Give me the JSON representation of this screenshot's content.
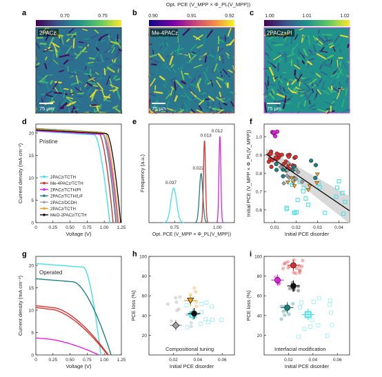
{
  "top": {
    "cbar_title": "Opt. PCE (V_MPP × Φ_PL(V_MPP))",
    "panels": [
      {
        "letter": "a",
        "map_label": "2PACz",
        "ticks": [
          "0.70",
          "0.75"
        ],
        "tick_pos": [
          0.34,
          0.78
        ],
        "scalebar": "75 μm",
        "frame": "#333333",
        "seed": 3
      },
      {
        "letter": "b",
        "map_label": "Me-4PACz",
        "ticks": [
          "0.90",
          "0.91",
          "0.92"
        ],
        "tick_pos": [
          0.0,
          0.5,
          1.0
        ],
        "scalebar": "75 μm",
        "frame": "#d8403a",
        "seed": 11
      },
      {
        "letter": "c",
        "map_label": "2PACz+PI",
        "ticks": [
          "1.00",
          "1.01",
          "1.02"
        ],
        "tick_pos": [
          0.0,
          0.5,
          1.0
        ],
        "scalebar": "75 μm",
        "frame": "#e040e0",
        "seed": 23
      }
    ]
  },
  "labels": {
    "d": "d",
    "e": "e",
    "f": "f",
    "g": "g",
    "h": "h",
    "i": "i"
  },
  "notes": {
    "pristine": "Pristine",
    "operated": "Operated",
    "comp": "Compositional tuning",
    "inter": "Interfacial modification"
  },
  "colors": {
    "2PACz/TCTH": "#3fe0e8",
    "Me-4PACz/TCTH": "#d8302e",
    "2PACz/TCTH/PI": "#e020e0",
    "2PACz/TCTH/LiF": "#1a8080",
    "2PACz/DCDH": "#a0a0a0",
    "2PACz/TCTH ": "#f0a020",
    "MeO-2PACz/TCTH": "#111111"
  },
  "chart_data": [
    {
      "panel": "d",
      "type": "line",
      "title": "Pristine",
      "xlabel": "Voltage (V)",
      "ylabel": "Current density (mA cm⁻²)",
      "xlim": [
        0,
        1.25
      ],
      "ylim": [
        0,
        22
      ],
      "xticks": [
        "0",
        "0.25",
        "0.50",
        "0.75",
        "1.00",
        "1.25"
      ],
      "yticks": [
        "0",
        "5",
        "10",
        "15",
        "20"
      ],
      "legend": [
        "2PACz/TCTH",
        "Me-4PACz/TCTH",
        "2PACz/TCTH/PI",
        "2PACz/TCTH/LiF",
        "2PACz/DCDH",
        "2PACz/TCTH",
        "MeO-2PACz/TCTH"
      ],
      "series": [
        {
          "name": "2PACz/TCTH",
          "color": "#3fe0e8",
          "jsc": 20.4,
          "voc": 1.08,
          "knee": 0.86
        },
        {
          "name": "Me-4PACz/TCTH",
          "color": "#d8302e",
          "jsc": 20.6,
          "voc": 1.13,
          "knee": 0.93
        },
        {
          "name": "2PACz/TCTH/PI",
          "color": "#e020e0",
          "jsc": 20.5,
          "voc": 1.2,
          "knee": 0.99
        },
        {
          "name": "2PACz/TCTH/LiF",
          "color": "#1a8080",
          "jsc": 21.0,
          "voc": 1.17,
          "knee": 0.97
        },
        {
          "name": "2PACz/DCDH",
          "color": "#a0a0a0",
          "jsc": 20.8,
          "voc": 1.18,
          "knee": 0.98
        },
        {
          "name": "2PACz/TCTH",
          "color": "#f0a020",
          "jsc": 20.9,
          "voc": 1.21,
          "knee": 1.01
        },
        {
          "name": "MeO-2PACz/TCTH",
          "color": "#111111",
          "jsc": 20.7,
          "voc": 1.24,
          "knee": 1.04
        }
      ]
    },
    {
      "panel": "e",
      "type": "histogram",
      "xlabel": "Opt. PCE (V_MPP × Φ_PL(V_MPP))",
      "ylabel": "Frequency (a.u.)",
      "xlim": [
        0.6,
        1.1
      ],
      "xticks": [
        "0.75",
        "1.00"
      ],
      "series": [
        {
          "color": "#3fe0e8",
          "center": 0.745,
          "width": 0.037,
          "height": 0.4,
          "label": "0.037"
        },
        {
          "color": "#1a8080",
          "center": 0.905,
          "width": 0.022,
          "height": 0.57,
          "label": "0.022"
        },
        {
          "color": "#d8302e",
          "center": 0.925,
          "width": 0.013,
          "height": 0.95,
          "label": "0.013"
        },
        {
          "color": "#e020e0",
          "center": 1.015,
          "width": 0.012,
          "height": 1.0,
          "label": "0.012"
        }
      ]
    },
    {
      "panel": "f",
      "type": "scatter",
      "xlabel": "Initial PCE disorder",
      "ylabel": "Initial PCE (V_MPP × Φ_PL(V_MPP))",
      "xlim": [
        0.005,
        0.045
      ],
      "ylim": [
        0.53,
        1.07
      ],
      "xticks": [
        "0.01",
        "0.02",
        "0.03",
        "0.04"
      ],
      "yticks": [
        "0.6",
        "0.7",
        "0.8",
        "0.9",
        "1.0"
      ],
      "fit": {
        "x0": 0.006,
        "y0": 0.905,
        "x1": 0.045,
        "y1": 0.595
      }
    },
    {
      "panel": "g",
      "type": "line",
      "title": "Operated",
      "xlabel": "Voltage (V)",
      "ylabel": "Current density (mA cm⁻²)",
      "xlim": [
        0,
        1.25
      ],
      "ylim": [
        0,
        22
      ],
      "xticks": [
        "0",
        "0.25",
        "0.50",
        "0.75",
        "1.00",
        "1.25"
      ],
      "yticks": [
        "0",
        "5",
        "10",
        "15",
        "20"
      ],
      "series": [
        {
          "name": "cyan",
          "color": "#3fe0e8",
          "jsc": 20.4,
          "voc": 0.95,
          "knee": 0.7
        },
        {
          "name": "teal",
          "color": "#1a8080",
          "jsc": 17.0,
          "voc": 1.1,
          "knee": 0.55
        },
        {
          "name": "red",
          "color": "#d8302e",
          "jsc": 11.0,
          "voc": 1.06,
          "knee": 0.25
        },
        {
          "name": "red2",
          "color": "#d8302e",
          "jsc": 10.6,
          "voc": 1.05,
          "knee": 0.22
        },
        {
          "name": "magenta",
          "color": "#e020e0",
          "jsc": 3.8,
          "voc": 0.92,
          "knee": 0.1
        }
      ]
    },
    {
      "panel": "h",
      "type": "scatter",
      "xlabel": "Initial PCE disorder",
      "ylabel": "PCE loss (%)",
      "xlim": [
        0,
        0.07
      ],
      "ylim": [
        0,
        100
      ],
      "xticks": [
        "0.02",
        "0.04",
        "0.06"
      ],
      "yticks": [
        "20",
        "40",
        "60",
        "80",
        "100"
      ],
      "means": [
        {
          "x": 0.036,
          "y": 41,
          "color": "#3fe0e8",
          "shape": "square"
        },
        {
          "x": 0.022,
          "y": 30,
          "color": "#a0a0a0",
          "shape": "diamond"
        },
        {
          "x": 0.034,
          "y": 55,
          "color": "#f0a020",
          "shape": "triangle"
        },
        {
          "x": 0.037,
          "y": 42,
          "color": "#111111",
          "shape": "circle"
        }
      ]
    },
    {
      "panel": "i",
      "type": "scatter",
      "xlabel": "Initial PCE disorder",
      "ylabel": "PCE loss (%)",
      "xlim": [
        0,
        0.07
      ],
      "ylim": [
        0,
        100
      ],
      "xticks": [
        "0.02",
        "0.04",
        "0.06"
      ],
      "yticks": [
        "20",
        "40",
        "60",
        "80",
        "100"
      ],
      "means": [
        {
          "x": 0.024,
          "y": 91,
          "color": "#d8302e",
          "shape": "circle"
        },
        {
          "x": 0.011,
          "y": 76,
          "color": "#e020e0",
          "shape": "circle"
        },
        {
          "x": 0.024,
          "y": 70,
          "color": "#111111",
          "shape": "circle"
        },
        {
          "x": 0.019,
          "y": 48,
          "color": "#1a8080",
          "shape": "hex"
        },
        {
          "x": 0.036,
          "y": 41,
          "color": "#3fe0e8",
          "shape": "square"
        }
      ]
    }
  ]
}
